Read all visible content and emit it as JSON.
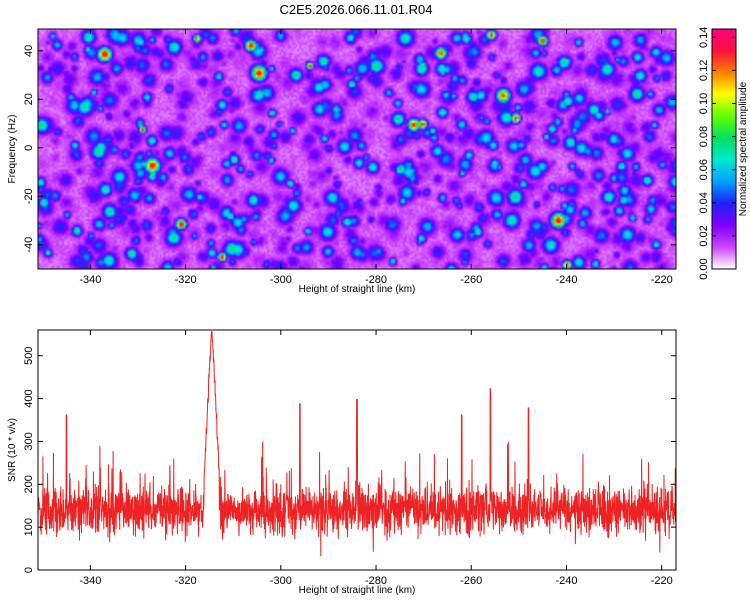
{
  "title": "C2E5.2026.066.11.01.R04",
  "chart_data": [
    {
      "type": "heatmap",
      "xlabel": "Height of straight line (km)",
      "ylabel": "Frequency (Hz)",
      "xlim": [
        -351,
        -217
      ],
      "ylim": [
        -50,
        49
      ],
      "xticks": [
        -340,
        -320,
        -300,
        -280,
        -260,
        -240,
        -220
      ],
      "yticks": [
        -40,
        -20,
        0,
        20,
        40
      ],
      "colorbar": {
        "label": "Normalized spectral amplitude",
        "range": [
          0,
          0.145
        ],
        "ticks": [
          "0.00",
          "0.02",
          "0.04",
          "0.06",
          "0.08",
          "0.10",
          "0.12",
          "0.14"
        ],
        "colors": [
          "#ffffff",
          "#cc44ff",
          "#8000ff",
          "#2020ff",
          "#00a0ff",
          "#00e8d0",
          "#00e060",
          "#60ff00",
          "#ffff00",
          "#ff8000",
          "#ff1040",
          "#ff0080"
        ]
      },
      "description_values": {
        "typical_amplitude": [
          0.0,
          0.06
        ],
        "peak_amplitude": 0.14
      }
    },
    {
      "type": "line",
      "color": "#ee2222",
      "xlabel": "Height of straight line (km)",
      "ylabel": "SNR (10 * v/v)",
      "xlim": [
        -351,
        -217
      ],
      "ylim": [
        0,
        560
      ],
      "xticks": [
        -340,
        -320,
        -300,
        -280,
        -260,
        -240,
        -220
      ],
      "yticks": [
        0,
        100,
        200,
        300,
        400,
        500
      ],
      "baseline_range": [
        60,
        220
      ],
      "peak": {
        "x": -314.5,
        "y": 556
      },
      "secondary_peaks": [
        {
          "x": -345,
          "y": 362
        },
        {
          "x": -296,
          "y": 388
        },
        {
          "x": -284,
          "y": 398
        },
        {
          "x": -262,
          "y": 362
        },
        {
          "x": -256,
          "y": 423
        },
        {
          "x": -248,
          "y": 378
        }
      ]
    }
  ]
}
